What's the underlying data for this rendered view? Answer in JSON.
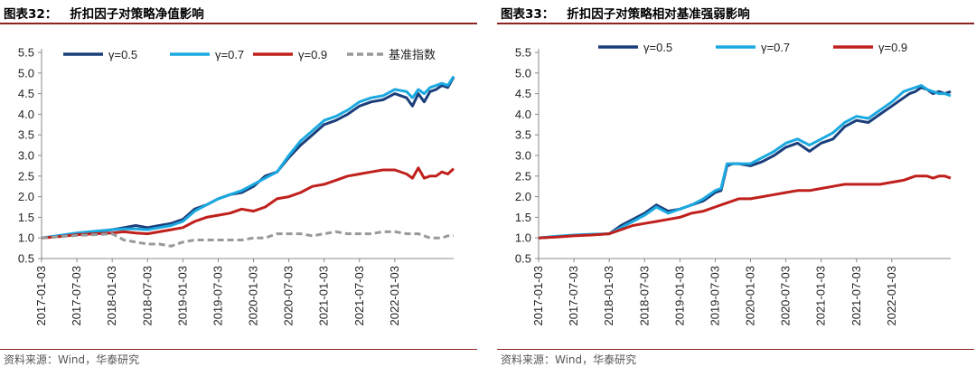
{
  "source_text": "资料来源：Wind，华泰研究",
  "charts": [
    {
      "title_num": "图表32：",
      "title_text": "折扣因子对策略净值影响"
    },
    {
      "title_num": "图表33：",
      "title_text": "折扣因子对策略相对基准强弱影响"
    }
  ],
  "chart_data": [
    {
      "type": "line",
      "title": "折扣因子对策略净值影响",
      "ylim": [
        0.5,
        5.5
      ],
      "yticks": [
        "0.5",
        "1.0",
        "1.5",
        "2.0",
        "2.5",
        "3.0",
        "3.5",
        "4.0",
        "4.5",
        "5.0",
        "5.5"
      ],
      "xticks": [
        "2017-01-03",
        "2017-07-03",
        "2018-01-03",
        "2018-07-03",
        "2019-01-03",
        "2019-07-03",
        "2020-01-03",
        "2020-07-03",
        "2021-01-03",
        "2021-07-03",
        "2022-01-03"
      ],
      "x_range": [
        0,
        70
      ],
      "series": [
        {
          "name": "γ=0.5",
          "color": "#1a3e7a",
          "dash": false,
          "x": [
            0,
            3,
            6,
            9,
            12,
            14,
            16,
            18,
            20,
            22,
            24,
            26,
            28,
            30,
            32,
            34,
            36,
            38,
            40,
            42,
            44,
            46,
            48,
            50,
            52,
            54,
            56,
            58,
            60,
            62,
            63,
            64,
            65,
            66,
            67,
            68,
            69,
            70
          ],
          "values": [
            1.0,
            1.05,
            1.1,
            1.15,
            1.2,
            1.25,
            1.3,
            1.25,
            1.3,
            1.35,
            1.45,
            1.7,
            1.8,
            1.95,
            2.05,
            2.1,
            2.25,
            2.5,
            2.6,
            2.95,
            3.25,
            3.5,
            3.75,
            3.85,
            4.0,
            4.2,
            4.3,
            4.35,
            4.5,
            4.4,
            4.2,
            4.5,
            4.3,
            4.55,
            4.6,
            4.7,
            4.65,
            4.9
          ]
        },
        {
          "name": "γ=0.7",
          "color": "#1aa9e0",
          "dash": false,
          "x": [
            0,
            3,
            6,
            9,
            12,
            14,
            16,
            18,
            20,
            22,
            24,
            26,
            28,
            30,
            32,
            34,
            36,
            38,
            40,
            42,
            44,
            46,
            48,
            50,
            52,
            54,
            56,
            58,
            60,
            62,
            63,
            64,
            65,
            66,
            67,
            68,
            69,
            70
          ],
          "values": [
            1.0,
            1.06,
            1.12,
            1.16,
            1.2,
            1.22,
            1.22,
            1.2,
            1.25,
            1.3,
            1.4,
            1.65,
            1.8,
            1.95,
            2.05,
            2.15,
            2.3,
            2.45,
            2.6,
            3.0,
            3.35,
            3.6,
            3.85,
            3.95,
            4.1,
            4.3,
            4.4,
            4.45,
            4.6,
            4.55,
            4.4,
            4.6,
            4.5,
            4.65,
            4.7,
            4.75,
            4.7,
            4.92
          ]
        },
        {
          "name": "γ=0.9",
          "color": "#c0201c",
          "dash": false,
          "x": [
            0,
            3,
            6,
            9,
            12,
            14,
            16,
            18,
            20,
            22,
            24,
            26,
            28,
            30,
            32,
            34,
            36,
            38,
            40,
            42,
            44,
            46,
            48,
            50,
            52,
            54,
            56,
            58,
            60,
            62,
            63,
            64,
            65,
            66,
            67,
            68,
            69,
            70
          ],
          "values": [
            1.0,
            1.03,
            1.08,
            1.1,
            1.12,
            1.15,
            1.12,
            1.1,
            1.15,
            1.2,
            1.25,
            1.4,
            1.5,
            1.55,
            1.6,
            1.7,
            1.65,
            1.75,
            1.95,
            2.0,
            2.1,
            2.25,
            2.3,
            2.4,
            2.5,
            2.55,
            2.6,
            2.65,
            2.65,
            2.55,
            2.45,
            2.7,
            2.45,
            2.5,
            2.5,
            2.6,
            2.55,
            2.68
          ]
        },
        {
          "name": "基准指数",
          "color": "#999999",
          "dash": true,
          "x": [
            0,
            3,
            6,
            9,
            12,
            14,
            16,
            18,
            20,
            22,
            24,
            26,
            28,
            30,
            32,
            34,
            36,
            38,
            40,
            42,
            44,
            46,
            48,
            50,
            52,
            54,
            56,
            58,
            60,
            62,
            63,
            64,
            65,
            66,
            67,
            68,
            69,
            70
          ],
          "values": [
            1.0,
            1.03,
            1.06,
            1.08,
            1.1,
            0.95,
            0.9,
            0.85,
            0.85,
            0.8,
            0.9,
            0.95,
            0.95,
            0.95,
            0.95,
            0.95,
            1.0,
            1.0,
            1.1,
            1.1,
            1.1,
            1.05,
            1.1,
            1.15,
            1.1,
            1.1,
            1.1,
            1.15,
            1.15,
            1.1,
            1.1,
            1.1,
            1.05,
            1.0,
            1.0,
            1.0,
            1.05,
            1.05
          ]
        }
      ]
    },
    {
      "type": "line",
      "title": "折扣因子对策略相对基准强弱影响",
      "ylim": [
        0.5,
        5.5
      ],
      "yticks": [
        "0.5",
        "1.0",
        "1.5",
        "2.0",
        "2.5",
        "3.0",
        "3.5",
        "4.0",
        "4.5",
        "5.0",
        "5.5"
      ],
      "xticks": [
        "2017-01-03",
        "2017-07-03",
        "2018-01-03",
        "2018-07-03",
        "2019-01-03",
        "2019-07-03",
        "2020-01-03",
        "2020-07-03",
        "2021-01-03",
        "2021-07-03",
        "2022-01-03"
      ],
      "x_range": [
        0,
        70
      ],
      "series": [
        {
          "name": "γ=0.5",
          "color": "#1a3e7a",
          "dash": false,
          "x": [
            0,
            3,
            6,
            9,
            12,
            14,
            16,
            18,
            20,
            22,
            24,
            26,
            28,
            29,
            30,
            31,
            32,
            33,
            34,
            36,
            38,
            40,
            42,
            44,
            46,
            48,
            50,
            52,
            54,
            56,
            58,
            60,
            62,
            63,
            64,
            65,
            66,
            67,
            68,
            69,
            70
          ],
          "values": [
            1.0,
            1.03,
            1.06,
            1.08,
            1.1,
            1.3,
            1.45,
            1.6,
            1.8,
            1.65,
            1.7,
            1.8,
            1.9,
            2.0,
            2.1,
            2.15,
            2.75,
            2.8,
            2.8,
            2.75,
            2.85,
            3.0,
            3.2,
            3.3,
            3.1,
            3.3,
            3.4,
            3.7,
            3.85,
            3.8,
            4.0,
            4.2,
            4.4,
            4.5,
            4.55,
            4.65,
            4.6,
            4.5,
            4.55,
            4.5,
            4.55
          ]
        },
        {
          "name": "γ=0.7",
          "color": "#1aa9e0",
          "dash": false,
          "x": [
            0,
            3,
            6,
            9,
            12,
            14,
            16,
            18,
            20,
            22,
            24,
            26,
            28,
            29,
            30,
            31,
            32,
            33,
            34,
            36,
            38,
            40,
            42,
            44,
            46,
            48,
            50,
            52,
            54,
            56,
            58,
            60,
            62,
            63,
            64,
            65,
            66,
            67,
            68,
            69,
            70
          ],
          "values": [
            1.0,
            1.04,
            1.07,
            1.09,
            1.1,
            1.25,
            1.4,
            1.55,
            1.75,
            1.6,
            1.7,
            1.8,
            1.95,
            2.05,
            2.15,
            2.2,
            2.8,
            2.8,
            2.8,
            2.8,
            2.95,
            3.1,
            3.3,
            3.4,
            3.25,
            3.4,
            3.55,
            3.8,
            3.95,
            3.9,
            4.1,
            4.3,
            4.55,
            4.6,
            4.65,
            4.7,
            4.6,
            4.55,
            4.5,
            4.5,
            4.45
          ]
        },
        {
          "name": "γ=0.9",
          "color": "#c0201c",
          "dash": false,
          "x": [
            0,
            3,
            6,
            9,
            12,
            14,
            16,
            18,
            20,
            22,
            24,
            26,
            28,
            29,
            30,
            31,
            32,
            33,
            34,
            36,
            38,
            40,
            42,
            44,
            46,
            48,
            50,
            52,
            54,
            56,
            58,
            60,
            62,
            63,
            64,
            65,
            66,
            67,
            68,
            69,
            70
          ],
          "values": [
            1.0,
            1.02,
            1.05,
            1.07,
            1.1,
            1.2,
            1.3,
            1.35,
            1.4,
            1.45,
            1.5,
            1.6,
            1.65,
            1.7,
            1.75,
            1.8,
            1.85,
            1.9,
            1.95,
            1.95,
            2.0,
            2.05,
            2.1,
            2.15,
            2.15,
            2.2,
            2.25,
            2.3,
            2.3,
            2.3,
            2.3,
            2.35,
            2.4,
            2.45,
            2.5,
            2.5,
            2.5,
            2.45,
            2.5,
            2.5,
            2.45
          ]
        }
      ]
    }
  ]
}
